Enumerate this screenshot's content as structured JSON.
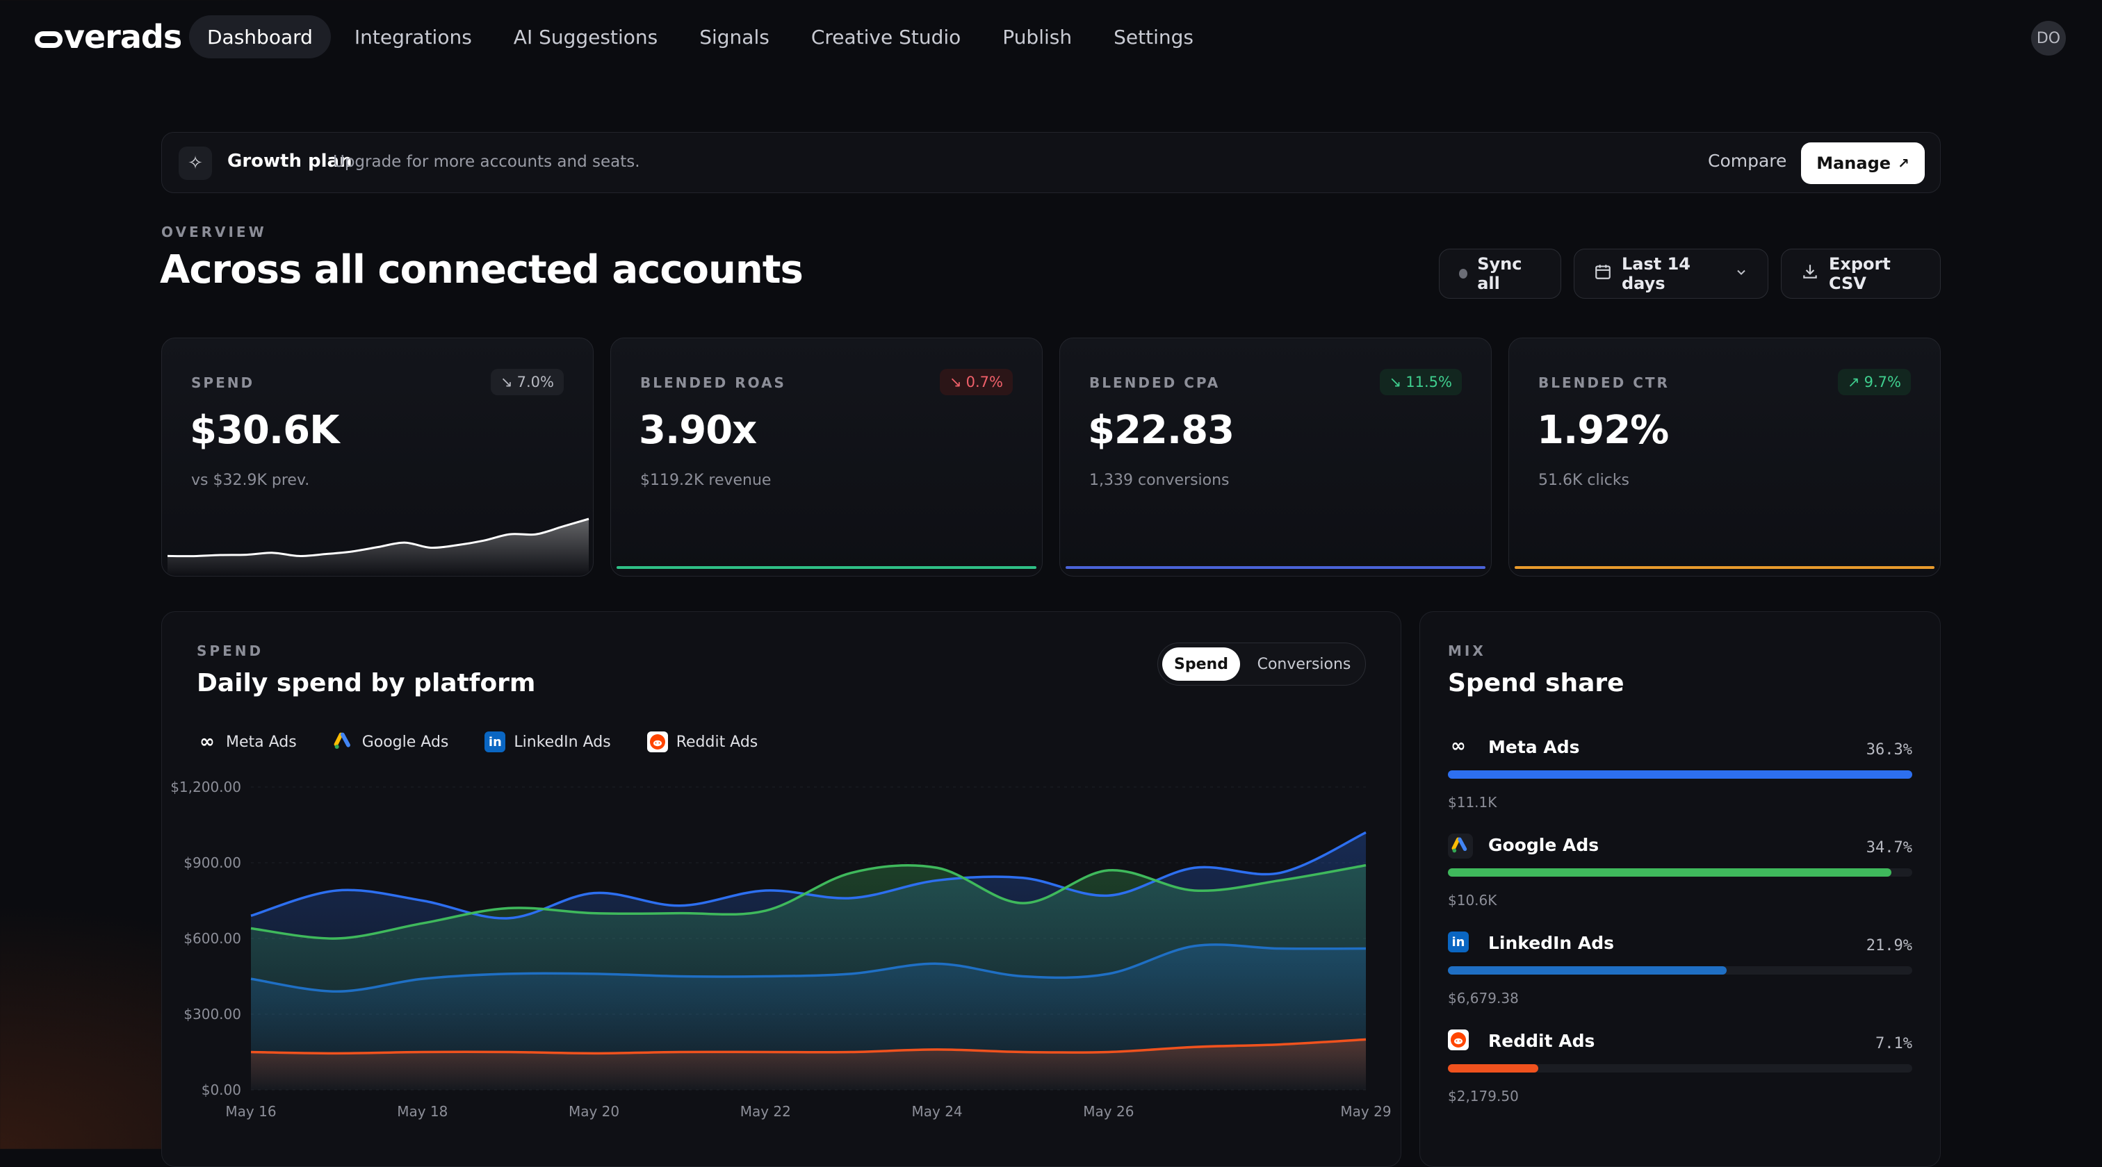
{
  "nav": {
    "logo": "overads",
    "items": [
      {
        "label": "Dashboard",
        "active": true
      },
      {
        "label": "Integrations",
        "active": false
      },
      {
        "label": "AI Suggestions",
        "active": false
      },
      {
        "label": "Signals",
        "active": false
      },
      {
        "label": "Creative Studio",
        "active": false
      },
      {
        "label": "Publish",
        "active": false
      },
      {
        "label": "Settings",
        "active": false
      }
    ],
    "avatar": "DO"
  },
  "plan": {
    "icon": "sparkle-icon",
    "title": "Growth plan",
    "subtitle": "Upgrade for more accounts and seats.",
    "compare_label": "Compare",
    "manage_label": "Manage"
  },
  "overview": {
    "eyebrow": "OVERVIEW",
    "title": "Across all connected accounts",
    "sync_label": "Sync all",
    "range_label": "Last 14 days",
    "export_label": "Export CSV"
  },
  "kpis": [
    {
      "label": "SPEND",
      "value": "$30.6K",
      "sub": "vs $32.9K prev.",
      "delta": "7.0%",
      "trend": "down",
      "tone": "neutral",
      "accent": "#ffffff"
    },
    {
      "label": "BLENDED ROAS",
      "value": "3.90x",
      "sub": "$119.2K revenue",
      "delta": "0.7%",
      "trend": "down",
      "tone": "bad",
      "accent": "#2fbf86"
    },
    {
      "label": "BLENDED CPA",
      "value": "$22.83",
      "sub": "1,339 conversions",
      "delta": "11.5%",
      "trend": "down",
      "tone": "good",
      "accent": "#4a63d8"
    },
    {
      "label": "BLENDED CTR",
      "value": "1.92%",
      "sub": "51.6K clicks",
      "delta": "9.7%",
      "trend": "up",
      "tone": "good",
      "accent": "#e89a2c"
    }
  ],
  "spend_sparkline": [
    180,
    178,
    195,
    200,
    230,
    180,
    210,
    250,
    320,
    390,
    310,
    350,
    420,
    520,
    520,
    640,
    760
  ],
  "daily": {
    "eyebrow": "SPEND",
    "title": "Daily spend by platform",
    "toggle_on": "Spend",
    "toggle_off": "Conversions",
    "legend": [
      {
        "name": "Meta Ads",
        "icon": "meta-icon"
      },
      {
        "name": "Google Ads",
        "icon": "google-ads-icon"
      },
      {
        "name": "LinkedIn Ads",
        "icon": "linkedin-icon"
      },
      {
        "name": "Reddit Ads",
        "icon": "reddit-icon"
      }
    ]
  },
  "chart_data": {
    "type": "area",
    "x": [
      "May 16",
      "May 17",
      "May 18",
      "May 19",
      "May 20",
      "May 21",
      "May 22",
      "May 23",
      "May 24",
      "May 25",
      "May 26",
      "May 27",
      "May 28",
      "May 29"
    ],
    "xticks": [
      "May 16",
      "May 18",
      "May 20",
      "May 22",
      "May 24",
      "May 26",
      "May 29"
    ],
    "yticks": [
      "$0.00",
      "$300.00",
      "$600.00",
      "$900.00",
      "$1,200.00"
    ],
    "ylim": [
      0,
      1200
    ],
    "series": [
      {
        "name": "Meta Ads",
        "color": "#2d6ff0",
        "values": [
          690,
          790,
          750,
          680,
          780,
          730,
          790,
          760,
          830,
          840,
          770,
          880,
          860,
          1020
        ]
      },
      {
        "name": "Google Ads",
        "color": "#3fb95c",
        "values": [
          640,
          600,
          660,
          720,
          700,
          700,
          710,
          860,
          880,
          740,
          870,
          790,
          830,
          890
        ]
      },
      {
        "name": "LinkedIn Ads",
        "color": "#1f6fc4",
        "values": [
          440,
          390,
          440,
          460,
          460,
          450,
          450,
          460,
          500,
          450,
          460,
          570,
          560,
          560
        ]
      },
      {
        "name": "Reddit Ads",
        "color": "#f0521e",
        "values": [
          150,
          145,
          150,
          150,
          145,
          150,
          150,
          150,
          160,
          150,
          150,
          170,
          180,
          200
        ]
      }
    ]
  },
  "mix": {
    "eyebrow": "MIX",
    "title": "Spend share",
    "rows": [
      {
        "name": "Meta Ads",
        "icon": "meta-icon",
        "pct_label": "36.3%",
        "share": 1.0,
        "amount": "$11.1K",
        "color": "#2d6ff0"
      },
      {
        "name": "Google Ads",
        "icon": "google-ads-icon",
        "pct_label": "34.7%",
        "share": 0.955,
        "amount": "$10.6K",
        "color": "#3fb95c"
      },
      {
        "name": "LinkedIn Ads",
        "icon": "linkedin-icon",
        "pct_label": "21.9%",
        "share": 0.6,
        "amount": "$6,679.38",
        "color": "#1f6fc4"
      },
      {
        "name": "Reddit Ads",
        "icon": "reddit-icon",
        "pct_label": "7.1%",
        "share": 0.195,
        "amount": "$2,179.50",
        "color": "#f0521e"
      }
    ]
  }
}
